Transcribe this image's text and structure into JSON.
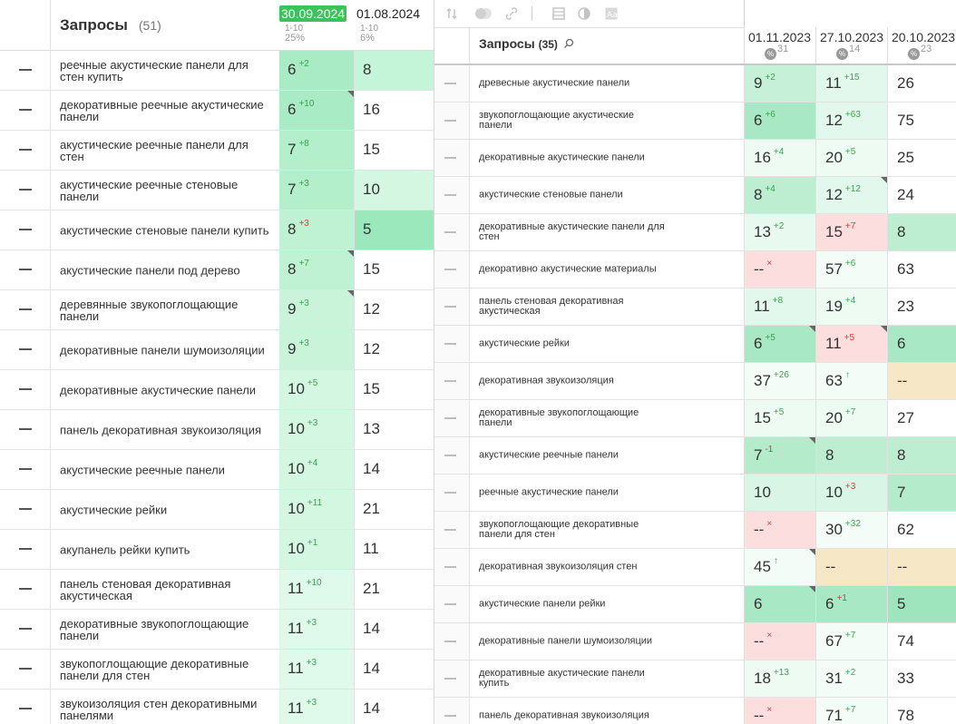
{
  "left": {
    "title": "Запросы",
    "count": "(51)",
    "dates": [
      {
        "date": "30.09.2024",
        "range": "1-10",
        "pct": "25%",
        "active": true
      },
      {
        "date": "01.08.2024",
        "range": "1-10",
        "pct": "6%",
        "active": false
      }
    ],
    "rows": [
      {
        "kw": "реечные акустические панели для стен купить",
        "v1": "6",
        "d1": "+2",
        "dir": "up",
        "v2": "8",
        "bg1": "#a8ebc5",
        "bg2": "#c5f5d8",
        "tri": false
      },
      {
        "kw": "декоративные реечные акустические панели",
        "v1": "6",
        "d1": "+10",
        "dir": "up",
        "v2": "16",
        "bg1": "#a8ebc5",
        "bg2": "#ffffff",
        "tri": true
      },
      {
        "kw": "акустические реечные панели для стен",
        "v1": "7",
        "d1": "+8",
        "dir": "up",
        "v2": "15",
        "bg1": "#b3efcb",
        "bg2": "#ffffff",
        "tri": false
      },
      {
        "kw": "акустические реечные стеновые панели",
        "v1": "7",
        "d1": "+3",
        "dir": "up",
        "v2": "10",
        "bg1": "#b3efcb",
        "bg2": "#d4f7e2",
        "tri": false
      },
      {
        "kw": "акустические стеновые панели купить",
        "v1": "8",
        "d1": "+3",
        "dir": "dn",
        "v2": "5",
        "bg1": "#bff2d3",
        "bg2": "#9be8bc",
        "tri": false
      },
      {
        "kw": "акустические панели под дерево",
        "v1": "8",
        "d1": "+7",
        "dir": "up",
        "v2": "15",
        "bg1": "#bff2d3",
        "bg2": "#ffffff",
        "tri": true
      },
      {
        "kw": "деревянные звукопоглощающие панели",
        "v1": "9",
        "d1": "+3",
        "dir": "up",
        "v2": "12",
        "bg1": "#c9f4da",
        "bg2": "#ffffff",
        "tri": true
      },
      {
        "kw": "декоративные панели шумоизоляции",
        "v1": "9",
        "d1": "+3",
        "dir": "up",
        "v2": "12",
        "bg1": "#c9f4da",
        "bg2": "#ffffff",
        "tri": false
      },
      {
        "kw": "декоративные акустические панели",
        "v1": "10",
        "d1": "+5",
        "dir": "up",
        "v2": "15",
        "bg1": "#d4f7e2",
        "bg2": "#ffffff",
        "tri": false
      },
      {
        "kw": "панель декоративная звукоизоляция",
        "v1": "10",
        "d1": "+3",
        "dir": "up",
        "v2": "13",
        "bg1": "#d4f7e2",
        "bg2": "#ffffff",
        "tri": false
      },
      {
        "kw": "акустические реечные панели",
        "v1": "10",
        "d1": "+4",
        "dir": "up",
        "v2": "14",
        "bg1": "#d4f7e2",
        "bg2": "#ffffff",
        "tri": false
      },
      {
        "kw": "акустические рейки",
        "v1": "10",
        "d1": "+11",
        "dir": "up",
        "v2": "21",
        "bg1": "#d4f7e2",
        "bg2": "#ffffff",
        "tri": false
      },
      {
        "kw": "акупанель рейки купить",
        "v1": "10",
        "d1": "+1",
        "dir": "up",
        "v2": "11",
        "bg1": "#d4f7e2",
        "bg2": "#ffffff",
        "tri": false
      },
      {
        "kw": "панель стеновая декоративная акустическая",
        "v1": "11",
        "d1": "+10",
        "dir": "up",
        "v2": "21",
        "bg1": "#dff9ea",
        "bg2": "#ffffff",
        "tri": false
      },
      {
        "kw": "декоративные звукопоглощающие панели",
        "v1": "11",
        "d1": "+3",
        "dir": "up",
        "v2": "14",
        "bg1": "#dff9ea",
        "bg2": "#ffffff",
        "tri": false
      },
      {
        "kw": "звукопоглощающие декоративные панели для стен",
        "v1": "11",
        "d1": "+3",
        "dir": "up",
        "v2": "14",
        "bg1": "#dff9ea",
        "bg2": "#ffffff",
        "tri": false
      },
      {
        "kw": "звукоизоляция стен декоративными панелями",
        "v1": "11",
        "d1": "+3",
        "dir": "up",
        "v2": "14",
        "bg1": "#dff9ea",
        "bg2": "#ffffff",
        "tri": false
      }
    ]
  },
  "right": {
    "toolbar_icons": [
      "sort-icon",
      "toggle-icon",
      "link-icon",
      "grid-icon",
      "contrast-icon",
      "text-icon"
    ],
    "title": "Запросы",
    "count": "(35)",
    "search_icon": "search-icon",
    "dates": [
      {
        "date": "01.11.2023",
        "badge": "%",
        "num": "31"
      },
      {
        "date": "27.10.2023",
        "badge": "%",
        "num": "14"
      },
      {
        "date": "20.10.2023",
        "badge": "%",
        "num": "23"
      }
    ],
    "rows": [
      {
        "kw": "древесные акустические панели",
        "cells": [
          {
            "v": "9",
            "d": "+2",
            "dir": "up",
            "bg": "#c6f1d8",
            "tri": false
          },
          {
            "v": "11",
            "d": "+15",
            "dir": "up",
            "bg": "#e3f8ec",
            "tri": false
          },
          {
            "v": "26",
            "d": "",
            "dir": "",
            "bg": "#ffffff",
            "tri": false
          }
        ]
      },
      {
        "kw": "звукопоглощающие акустические панели",
        "cells": [
          {
            "v": "6",
            "d": "+6",
            "dir": "up",
            "bg": "#a9e8c4",
            "tri": false
          },
          {
            "v": "12",
            "d": "+63",
            "dir": "up",
            "bg": "#e3f8ec",
            "tri": false
          },
          {
            "v": "75",
            "d": "",
            "dir": "",
            "bg": "#ffffff",
            "tri": false
          }
        ]
      },
      {
        "kw": "декоративные акустические панели",
        "cells": [
          {
            "v": "16",
            "d": "+4",
            "dir": "up",
            "bg": "#eefbf3",
            "tri": false
          },
          {
            "v": "20",
            "d": "+5",
            "dir": "up",
            "bg": "#eefbf3",
            "tri": false
          },
          {
            "v": "25",
            "d": "",
            "dir": "",
            "bg": "#ffffff",
            "tri": false
          }
        ]
      },
      {
        "kw": "акустические стеновые панели",
        "cells": [
          {
            "v": "8",
            "d": "+4",
            "dir": "up",
            "bg": "#bdeed1",
            "tri": false
          },
          {
            "v": "12",
            "d": "+12",
            "dir": "up",
            "bg": "#e3f8ec",
            "tri": true
          },
          {
            "v": "24",
            "d": "",
            "dir": "",
            "bg": "#ffffff",
            "tri": false
          }
        ]
      },
      {
        "kw": "декоративные акустические панели для стен",
        "cells": [
          {
            "v": "13",
            "d": "+2",
            "dir": "up",
            "bg": "#e8f9ef",
            "tri": false
          },
          {
            "v": "15",
            "d": "+7",
            "dir": "dn",
            "bg": "#fbdedd",
            "tri": false
          },
          {
            "v": "8",
            "d": "",
            "dir": "",
            "bg": "#bdeed1",
            "tri": false
          }
        ]
      },
      {
        "kw": "декоративно акустические материалы",
        "cells": [
          {
            "v": "--",
            "d": "×",
            "dir": "dn",
            "bg": "#fbdedd",
            "tri": false
          },
          {
            "v": "57",
            "d": "+6",
            "dir": "up",
            "bg": "#f4fcf7",
            "tri": false
          },
          {
            "v": "63",
            "d": "",
            "dir": "",
            "bg": "#ffffff",
            "tri": false
          }
        ]
      },
      {
        "kw": "панель стеновая декоративная акустическая",
        "cells": [
          {
            "v": "11",
            "d": "+8",
            "dir": "up",
            "bg": "#e3f8ec",
            "tri": false
          },
          {
            "v": "19",
            "d": "+4",
            "dir": "up",
            "bg": "#eefbf3",
            "tri": false
          },
          {
            "v": "23",
            "d": "",
            "dir": "",
            "bg": "#ffffff",
            "tri": false
          }
        ]
      },
      {
        "kw": "акустические рейки",
        "cells": [
          {
            "v": "6",
            "d": "+5",
            "dir": "up",
            "bg": "#a9e8c4",
            "tri": true
          },
          {
            "v": "11",
            "d": "+5",
            "dir": "dn",
            "bg": "#fbdedd",
            "tri": true
          },
          {
            "v": "6",
            "d": "",
            "dir": "",
            "bg": "#a9e8c4",
            "tri": false
          }
        ]
      },
      {
        "kw": "декоративная звукоизоляция",
        "cells": [
          {
            "v": "37",
            "d": "+26",
            "dir": "up",
            "bg": "#f4fcf7",
            "tri": false
          },
          {
            "v": "63",
            "d": "↑",
            "dir": "up",
            "bg": "#f4fcf7",
            "tri": false
          },
          {
            "v": "--",
            "d": "",
            "dir": "",
            "bg": "#f6e8c6",
            "tri": false
          }
        ]
      },
      {
        "kw": "декоративные звукопоглощающие панели",
        "cells": [
          {
            "v": "15",
            "d": "+5",
            "dir": "up",
            "bg": "#eefbf3",
            "tri": false
          },
          {
            "v": "20",
            "d": "+7",
            "dir": "up",
            "bg": "#eefbf3",
            "tri": false
          },
          {
            "v": "27",
            "d": "",
            "dir": "",
            "bg": "#ffffff",
            "tri": false
          }
        ]
      },
      {
        "kw": "акустические реечные панели",
        "cells": [
          {
            "v": "7",
            "d": "-1",
            "dir": "dn",
            "bg": "#b3ebcb",
            "tri": true
          },
          {
            "v": "8",
            "d": "",
            "dir": "",
            "bg": "#bdeed1",
            "tri": false
          },
          {
            "v": "8",
            "d": "",
            "dir": "",
            "bg": "#bdeed1",
            "tri": false
          }
        ]
      },
      {
        "kw": "реечные акустические панели",
        "cells": [
          {
            "v": "10",
            "d": "",
            "dir": "",
            "bg": "#d9f5e5",
            "tri": false
          },
          {
            "v": "10",
            "d": "+3",
            "dir": "dn",
            "bg": "#d9f5e5",
            "tri": false
          },
          {
            "v": "7",
            "d": "",
            "dir": "",
            "bg": "#b3ebcb",
            "tri": false
          }
        ]
      },
      {
        "kw": "звукопоглощающие декоративные панели для стен",
        "cells": [
          {
            "v": "--",
            "d": "×",
            "dir": "dn",
            "bg": "#fbdedd",
            "tri": false
          },
          {
            "v": "30",
            "d": "+32",
            "dir": "up",
            "bg": "#f4fcf7",
            "tri": false
          },
          {
            "v": "62",
            "d": "",
            "dir": "",
            "bg": "#ffffff",
            "tri": false
          }
        ]
      },
      {
        "kw": "декоративная звукоизоляция стен",
        "cells": [
          {
            "v": "45",
            "d": "↑",
            "dir": "up",
            "bg": "#f4fcf7",
            "tri": true
          },
          {
            "v": "--",
            "d": "",
            "dir": "",
            "bg": "#f6e8c6",
            "tri": false
          },
          {
            "v": "--",
            "d": "",
            "dir": "",
            "bg": "#f6e8c6",
            "tri": false
          }
        ]
      },
      {
        "kw": "акустические панели рейки",
        "cells": [
          {
            "v": "6",
            "d": "",
            "dir": "",
            "bg": "#a9e8c4",
            "tri": true
          },
          {
            "v": "6",
            "d": "+1",
            "dir": "dn",
            "bg": "#a9e8c4",
            "tri": false
          },
          {
            "v": "5",
            "d": "",
            "dir": "",
            "bg": "#9ee4bc",
            "tri": false
          }
        ]
      },
      {
        "kw": "декоративные панели шумоизоляции",
        "cells": [
          {
            "v": "--",
            "d": "×",
            "dir": "dn",
            "bg": "#fbdedd",
            "tri": false
          },
          {
            "v": "67",
            "d": "+7",
            "dir": "up",
            "bg": "#f4fcf7",
            "tri": false
          },
          {
            "v": "74",
            "d": "",
            "dir": "",
            "bg": "#ffffff",
            "tri": false
          }
        ]
      },
      {
        "kw": "декоративные акустические панели купить",
        "cells": [
          {
            "v": "18",
            "d": "+13",
            "dir": "up",
            "bg": "#eefbf3",
            "tri": false
          },
          {
            "v": "31",
            "d": "+2",
            "dir": "up",
            "bg": "#f4fcf7",
            "tri": false
          },
          {
            "v": "33",
            "d": "",
            "dir": "",
            "bg": "#ffffff",
            "tri": false
          }
        ]
      },
      {
        "kw": "панель декоративная звукоизоляция",
        "cells": [
          {
            "v": "--",
            "d": "×",
            "dir": "dn",
            "bg": "#fbdedd",
            "tri": false
          },
          {
            "v": "71",
            "d": "+7",
            "dir": "up",
            "bg": "#f4fcf7",
            "tri": false
          },
          {
            "v": "78",
            "d": "",
            "dir": "",
            "bg": "#ffffff",
            "tri": false
          }
        ]
      }
    ]
  }
}
